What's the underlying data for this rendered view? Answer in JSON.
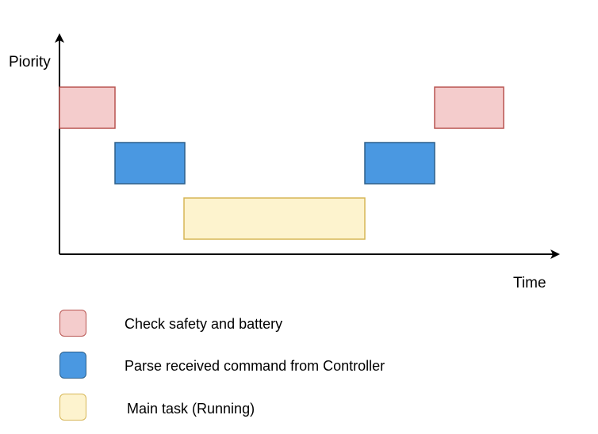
{
  "axes": {
    "y_label": "Piority",
    "x_label": "Time"
  },
  "legend": {
    "items": [
      {
        "key": "safety",
        "label": "Check safety and battery",
        "fill": "#f4cccc",
        "stroke": "#b85450"
      },
      {
        "key": "parse",
        "label": "Parse received command from Controller",
        "fill": "#4a98e1",
        "stroke": "#2c5f8a"
      },
      {
        "key": "main",
        "label": "Main task (Running)",
        "fill": "#fdf3ce",
        "stroke": "#d6b656"
      }
    ]
  },
  "tasks": [
    {
      "name": "Check safety and battery",
      "priority": "high",
      "order": 1,
      "fill": "#f4cccc",
      "stroke": "#b85450"
    },
    {
      "name": "Parse received command from Controller",
      "priority": "medium",
      "order": 2,
      "fill": "#4a98e1",
      "stroke": "#2c5f8a"
    },
    {
      "name": "Main task (Running)",
      "priority": "low",
      "order": 3,
      "fill": "#fdf3ce",
      "stroke": "#d6b656"
    },
    {
      "name": "Parse received command from Controller",
      "priority": "medium",
      "order": 4,
      "fill": "#4a98e1",
      "stroke": "#2c5f8a"
    },
    {
      "name": "Check safety and battery",
      "priority": "high",
      "order": 5,
      "fill": "#f4cccc",
      "stroke": "#b85450"
    }
  ]
}
